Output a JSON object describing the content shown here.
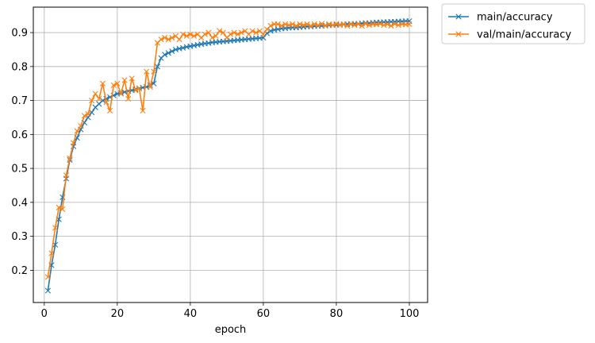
{
  "chart_data": {
    "type": "line",
    "title": "",
    "xlabel": "epoch",
    "ylabel": "",
    "xlim": [
      -3,
      105
    ],
    "ylim": [
      0.105,
      0.975
    ],
    "xticks": [
      0,
      20,
      40,
      60,
      80,
      100
    ],
    "yticks": [
      0.2,
      0.3,
      0.4,
      0.5,
      0.6,
      0.7,
      0.8,
      0.9
    ],
    "grid": true,
    "legend_position": "outside-top-right",
    "marker": "x",
    "series": [
      {
        "name": "main/accuracy",
        "color": "#1f77b4",
        "x": [
          1,
          2,
          3,
          4,
          5,
          6,
          7,
          8,
          9,
          10,
          11,
          12,
          13,
          14,
          15,
          16,
          17,
          18,
          19,
          20,
          21,
          22,
          23,
          24,
          25,
          26,
          27,
          28,
          29,
          30,
          31,
          32,
          33,
          34,
          35,
          36,
          37,
          38,
          39,
          40,
          41,
          42,
          43,
          44,
          45,
          46,
          47,
          48,
          49,
          50,
          51,
          52,
          53,
          54,
          55,
          56,
          57,
          58,
          59,
          60,
          61,
          62,
          63,
          64,
          65,
          66,
          67,
          68,
          69,
          70,
          71,
          72,
          73,
          74,
          75,
          76,
          77,
          78,
          79,
          80,
          81,
          82,
          83,
          84,
          85,
          86,
          87,
          88,
          89,
          90,
          91,
          92,
          93,
          94,
          95,
          96,
          97,
          98,
          99,
          100
        ],
        "y": [
          0.14,
          0.215,
          0.275,
          0.35,
          0.415,
          0.47,
          0.525,
          0.565,
          0.59,
          0.615,
          0.635,
          0.65,
          0.665,
          0.68,
          0.69,
          0.7,
          0.705,
          0.71,
          0.715,
          0.72,
          0.722,
          0.725,
          0.728,
          0.73,
          0.733,
          0.736,
          0.738,
          0.74,
          0.745,
          0.75,
          0.8,
          0.825,
          0.835,
          0.84,
          0.845,
          0.85,
          0.853,
          0.855,
          0.858,
          0.86,
          0.862,
          0.864,
          0.866,
          0.868,
          0.869,
          0.871,
          0.872,
          0.873,
          0.874,
          0.875,
          0.876,
          0.877,
          0.878,
          0.879,
          0.88,
          0.881,
          0.882,
          0.883,
          0.884,
          0.885,
          0.898,
          0.905,
          0.908,
          0.91,
          0.912,
          0.913,
          0.914,
          0.915,
          0.915,
          0.916,
          0.917,
          0.918,
          0.918,
          0.919,
          0.92,
          0.92,
          0.921,
          0.922,
          0.922,
          0.923,
          0.923,
          0.924,
          0.925,
          0.925,
          0.926,
          0.926,
          0.927,
          0.928,
          0.928,
          0.929,
          0.93,
          0.93,
          0.931,
          0.931,
          0.932,
          0.932,
          0.933,
          0.933,
          0.934,
          0.934
        ]
      },
      {
        "name": "val/main/accuracy",
        "color": "#ff7f0e",
        "x": [
          1,
          2,
          3,
          4,
          5,
          6,
          7,
          8,
          9,
          10,
          11,
          12,
          13,
          14,
          15,
          16,
          17,
          18,
          19,
          20,
          21,
          22,
          23,
          24,
          25,
          26,
          27,
          28,
          29,
          30,
          31,
          32,
          33,
          34,
          35,
          36,
          37,
          38,
          39,
          40,
          41,
          42,
          43,
          44,
          45,
          46,
          47,
          48,
          49,
          50,
          51,
          52,
          53,
          54,
          55,
          56,
          57,
          58,
          59,
          60,
          61,
          62,
          63,
          64,
          65,
          66,
          67,
          68,
          69,
          70,
          71,
          72,
          73,
          74,
          75,
          76,
          77,
          78,
          79,
          80,
          81,
          82,
          83,
          84,
          85,
          86,
          87,
          88,
          89,
          90,
          91,
          92,
          93,
          94,
          95,
          96,
          97,
          98,
          99,
          100
        ],
        "y": [
          0.18,
          0.25,
          0.325,
          0.385,
          0.38,
          0.48,
          0.53,
          0.575,
          0.61,
          0.625,
          0.655,
          0.66,
          0.7,
          0.72,
          0.705,
          0.75,
          0.695,
          0.67,
          0.745,
          0.75,
          0.72,
          0.76,
          0.705,
          0.765,
          0.73,
          0.735,
          0.67,
          0.785,
          0.74,
          0.785,
          0.87,
          0.88,
          0.885,
          0.88,
          0.885,
          0.89,
          0.88,
          0.895,
          0.89,
          0.895,
          0.89,
          0.895,
          0.885,
          0.895,
          0.9,
          0.885,
          0.89,
          0.905,
          0.9,
          0.885,
          0.895,
          0.9,
          0.895,
          0.9,
          0.905,
          0.895,
          0.905,
          0.9,
          0.905,
          0.895,
          0.91,
          0.92,
          0.925,
          0.925,
          0.92,
          0.925,
          0.922,
          0.925,
          0.92,
          0.925,
          0.922,
          0.925,
          0.92,
          0.925,
          0.922,
          0.926,
          0.92,
          0.925,
          0.922,
          0.926,
          0.922,
          0.925,
          0.92,
          0.926,
          0.922,
          0.925,
          0.92,
          0.926,
          0.922,
          0.925,
          0.924,
          0.926,
          0.922,
          0.925,
          0.92,
          0.926,
          0.922,
          0.925,
          0.924,
          0.925
        ]
      }
    ]
  }
}
